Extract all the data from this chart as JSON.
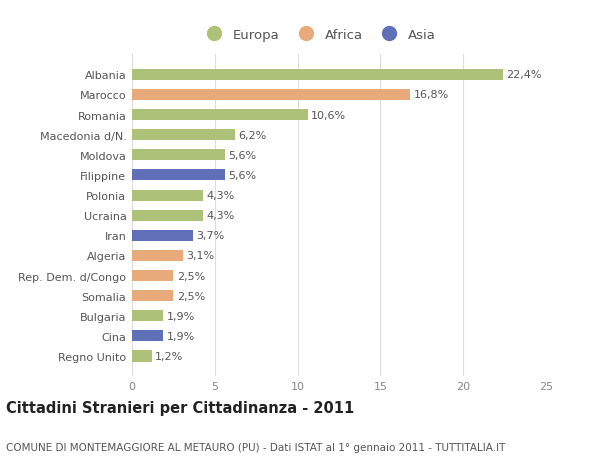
{
  "categories": [
    "Albania",
    "Marocco",
    "Romania",
    "Macedonia d/N.",
    "Moldova",
    "Filippine",
    "Polonia",
    "Ucraina",
    "Iran",
    "Algeria",
    "Rep. Dem. d/Congo",
    "Somalia",
    "Bulgaria",
    "Cina",
    "Regno Unito"
  ],
  "values": [
    22.4,
    16.8,
    10.6,
    6.2,
    5.6,
    5.6,
    4.3,
    4.3,
    3.7,
    3.1,
    2.5,
    2.5,
    1.9,
    1.9,
    1.2
  ],
  "labels": [
    "22,4%",
    "16,8%",
    "10,6%",
    "6,2%",
    "5,6%",
    "5,6%",
    "4,3%",
    "4,3%",
    "3,7%",
    "3,1%",
    "2,5%",
    "2,5%",
    "1,9%",
    "1,9%",
    "1,2%"
  ],
  "continents": [
    "Europa",
    "Africa",
    "Europa",
    "Europa",
    "Europa",
    "Asia",
    "Europa",
    "Europa",
    "Asia",
    "Africa",
    "Africa",
    "Africa",
    "Europa",
    "Asia",
    "Europa"
  ],
  "colors": {
    "Europa": "#adc178",
    "Africa": "#e8aa7a",
    "Asia": "#6070b8"
  },
  "xlim": [
    0,
    25
  ],
  "xticks": [
    0,
    5,
    10,
    15,
    20,
    25
  ],
  "title": "Cittadini Stranieri per Cittadinanza - 2011",
  "subtitle": "COMUNE DI MONTEMAGGIORE AL METAURO (PU) - Dati ISTAT al 1° gennaio 2011 - TUTTITALIA.IT",
  "background_color": "#ffffff",
  "grid_color": "#dddddd",
  "bar_height": 0.55,
  "label_fontsize": 8.0,
  "tick_fontsize": 8.0,
  "title_fontsize": 10.5,
  "subtitle_fontsize": 7.5,
  "legend_fontsize": 9.5
}
